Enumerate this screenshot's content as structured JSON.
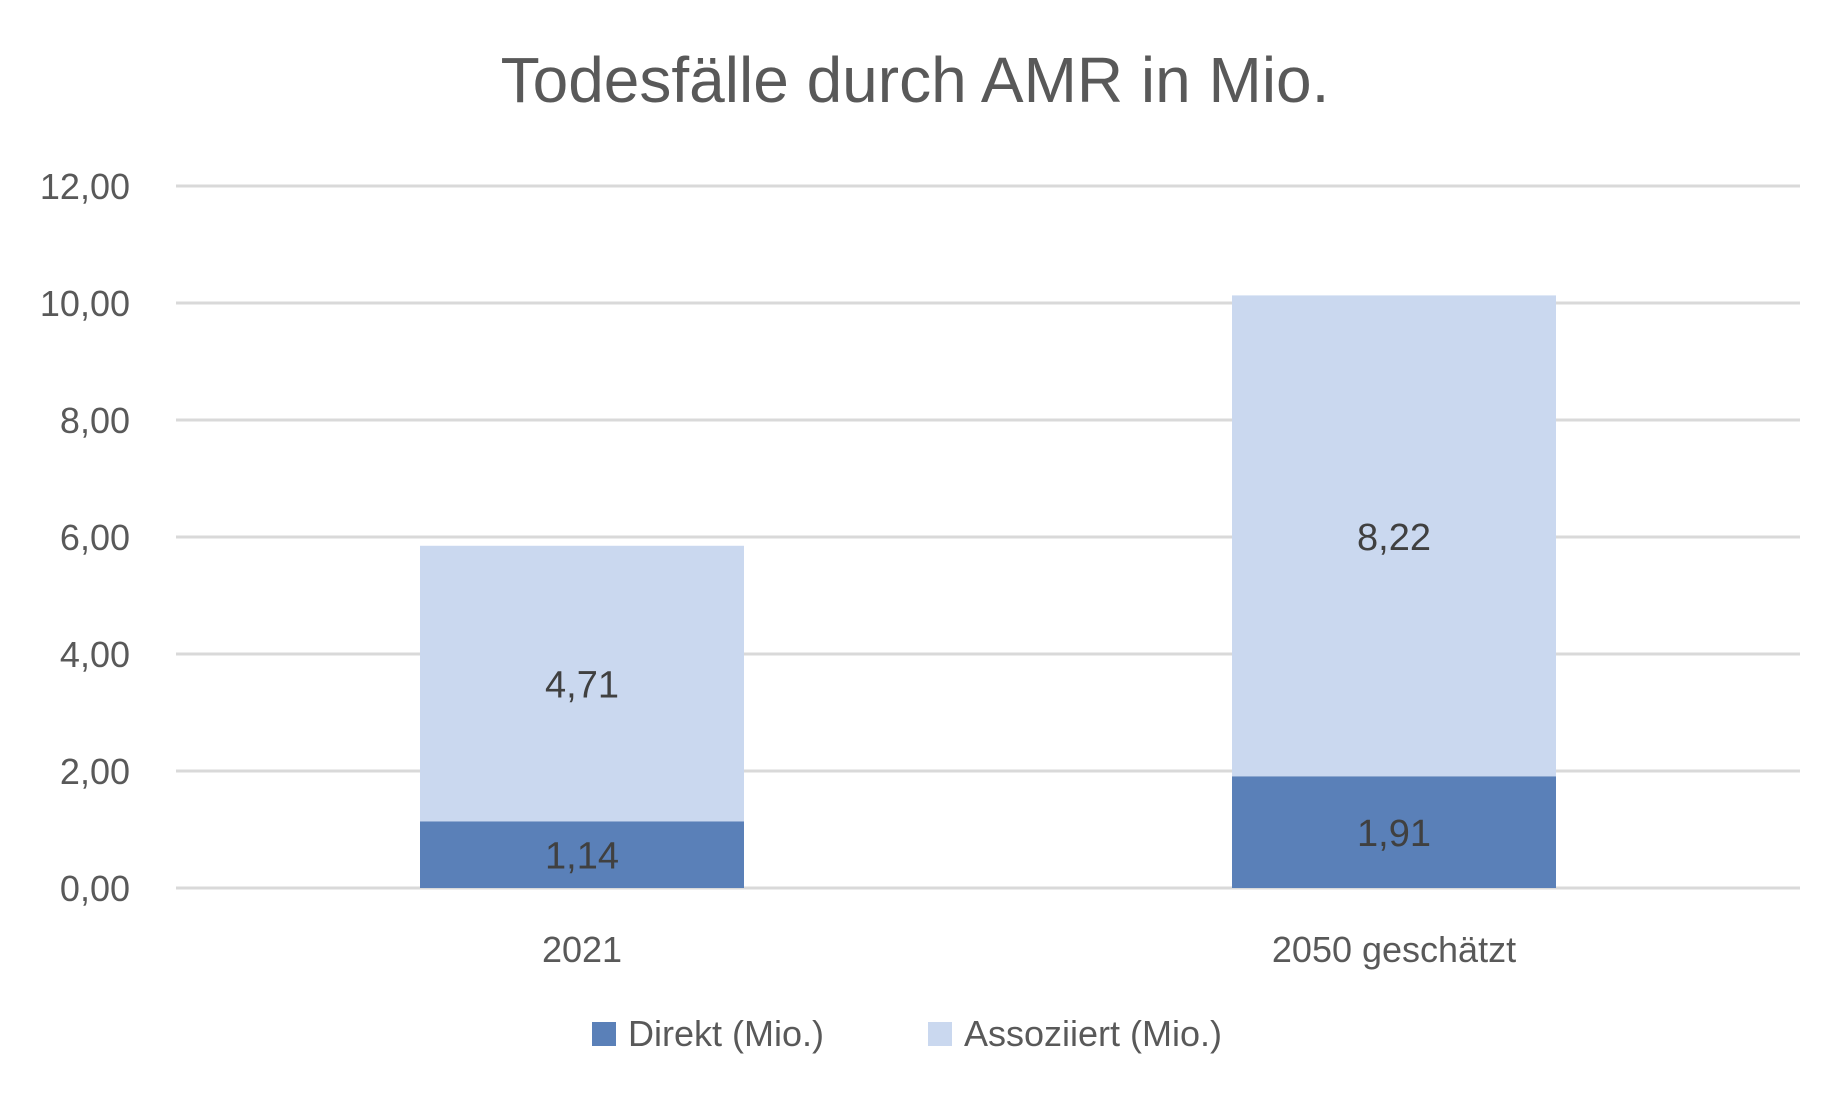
{
  "chart_data": {
    "type": "bar",
    "stacked": true,
    "title": "Todesfälle durch AMR in Mio.",
    "categories": [
      "2021",
      "2050 geschätzt"
    ],
    "series": [
      {
        "name": "Direkt (Mio.)",
        "values": [
          1.14,
          1.91
        ],
        "color": "#5a80b8",
        "labels": [
          "1,14",
          "1,91"
        ]
      },
      {
        "name": "Assoziiert (Mio.)",
        "values": [
          4.71,
          8.22
        ],
        "color": "#cad8ef",
        "labels": [
          "4,71",
          "8,22"
        ]
      }
    ],
    "ylim": [
      0,
      12
    ],
    "yticks": [
      0,
      2,
      4,
      6,
      8,
      10,
      12
    ],
    "ytick_labels": [
      "0,00",
      "2,00",
      "4,00",
      "6,00",
      "8,00",
      "10,00",
      "12,00"
    ],
    "grid": true,
    "legend_position": "bottom",
    "xlabel": "",
    "ylabel": ""
  }
}
